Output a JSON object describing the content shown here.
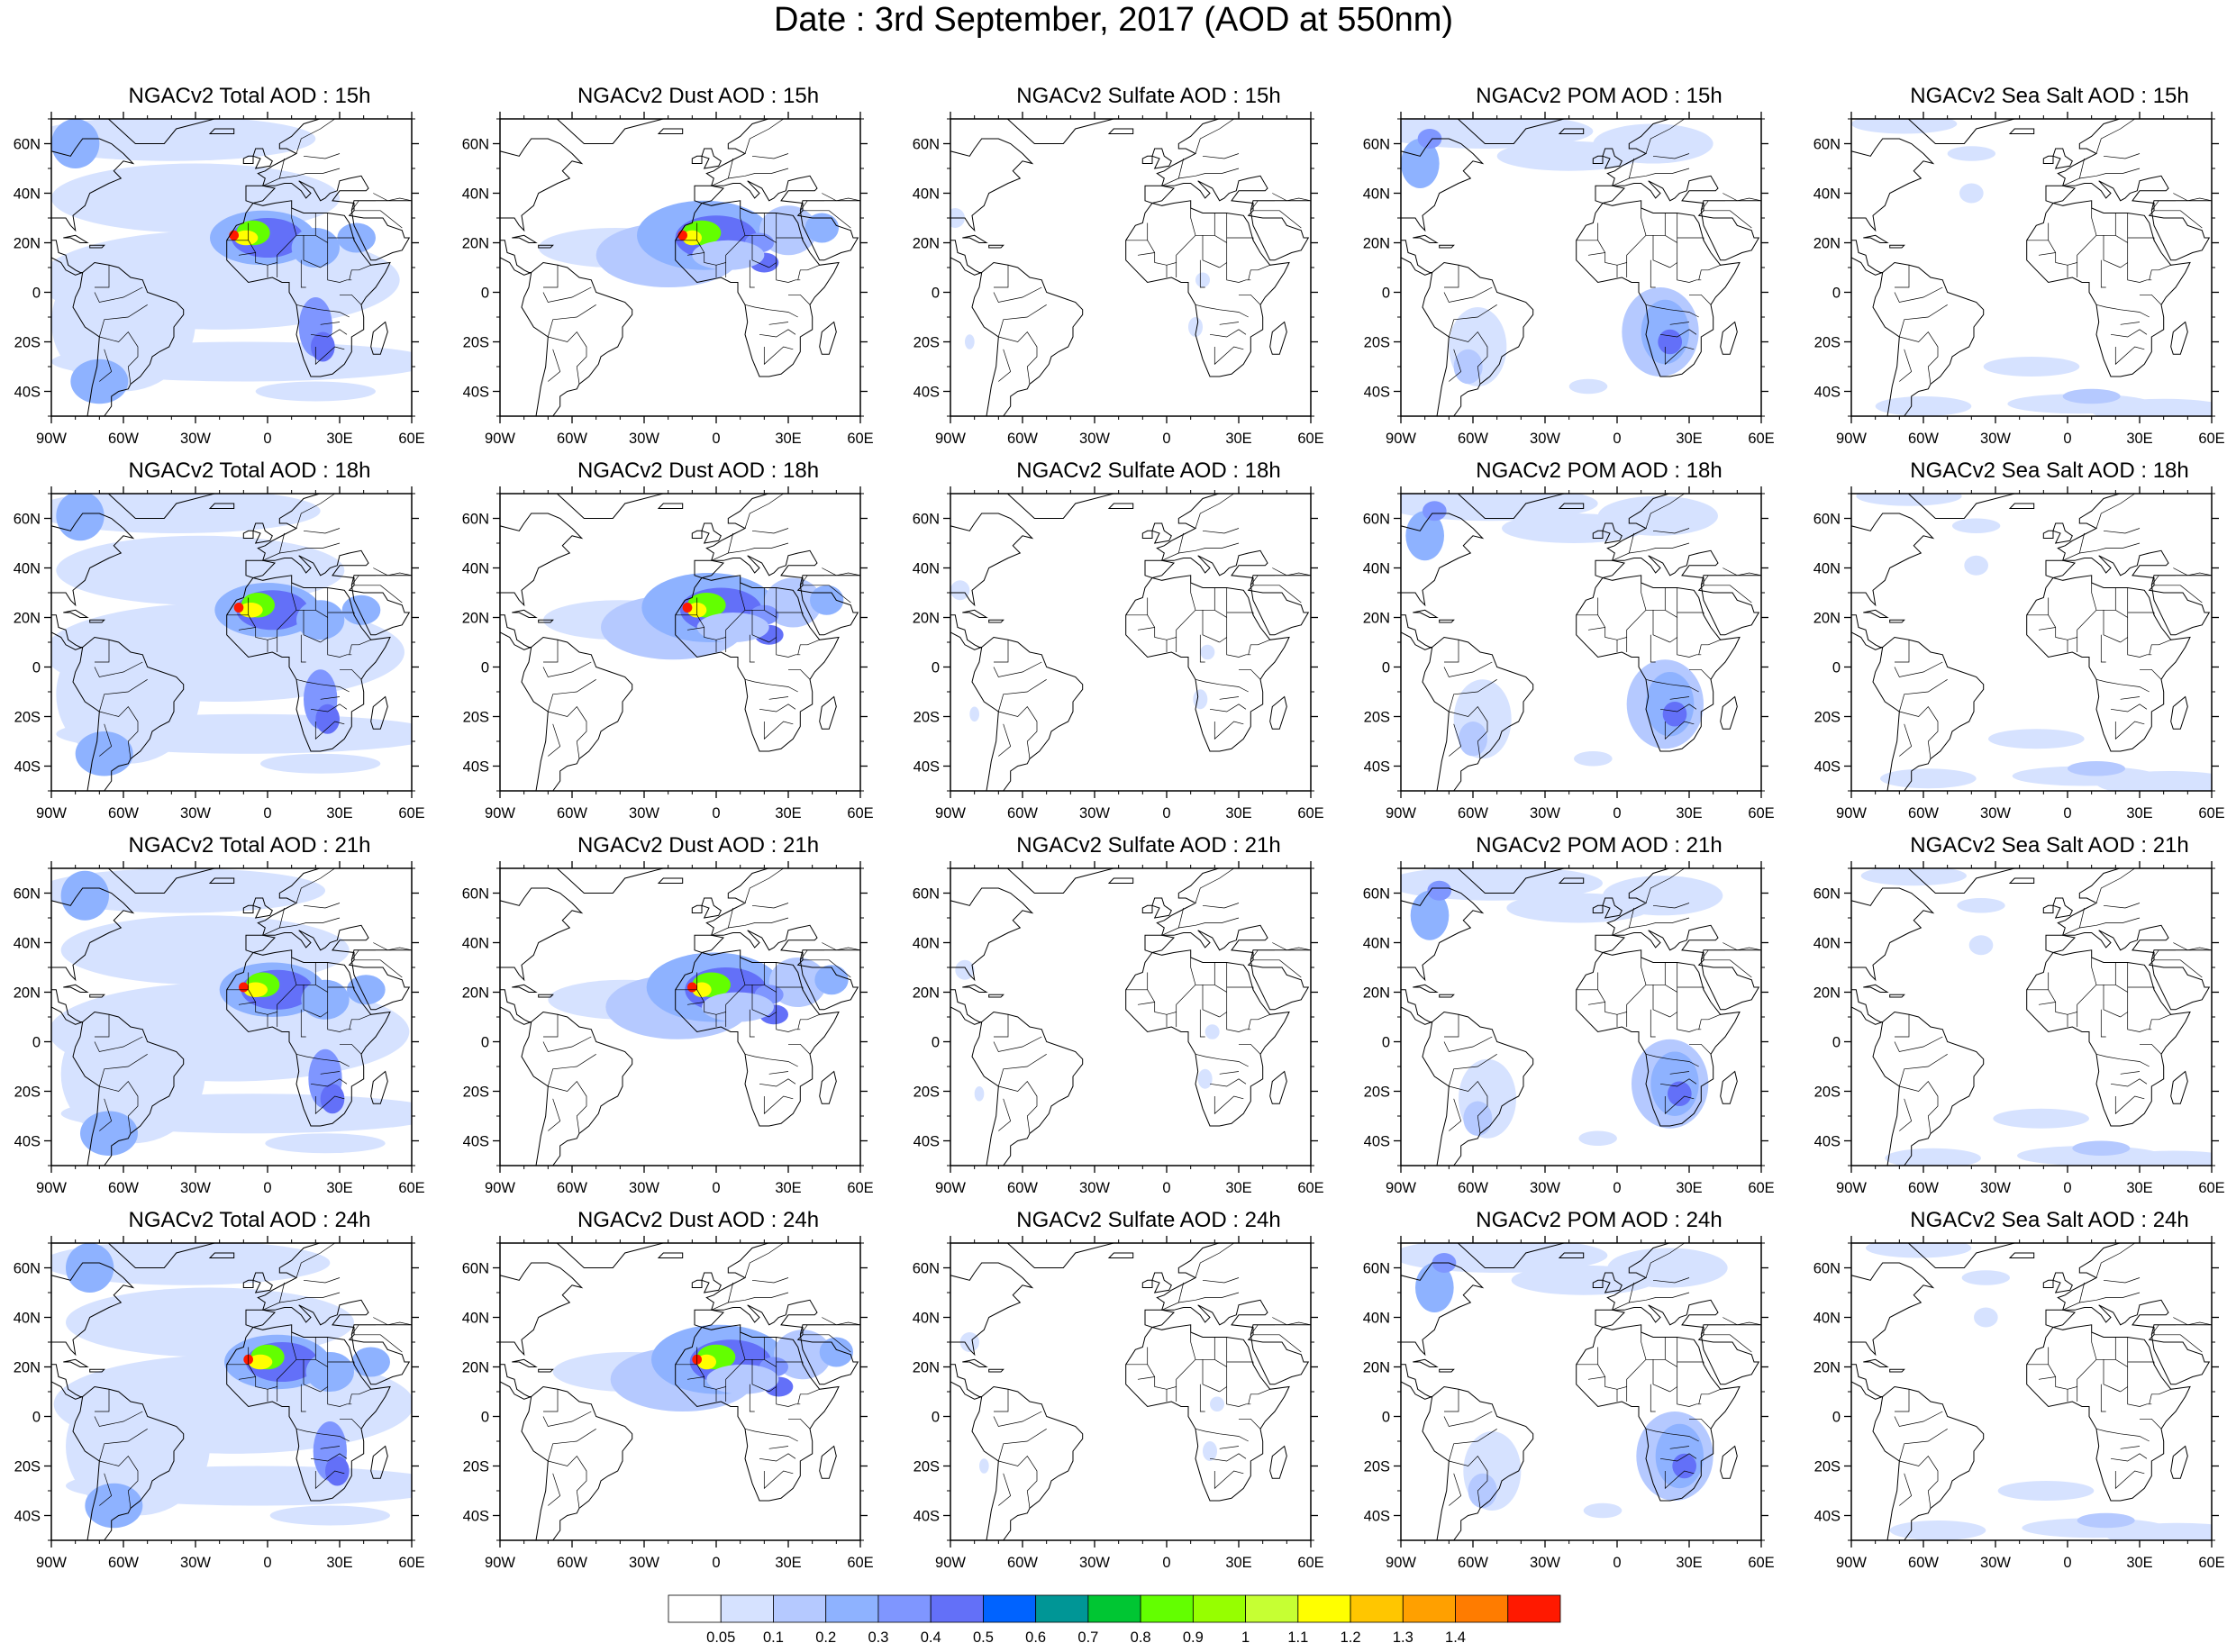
{
  "title": "Date : 3rd September, 2017 (AOD at 550nm)",
  "lon_tick_labels": [
    "90W",
    "60W",
    "30W",
    "0",
    "30E",
    "60E"
  ],
  "lat_tick_labels": [
    "60N",
    "40N",
    "20N",
    "0",
    "20S",
    "40S"
  ],
  "map_extent": {
    "lon": [
      -90,
      60
    ],
    "lat": [
      -50,
      70
    ]
  },
  "panels": [
    [
      {
        "title": "NGACv2 Total AOD : 15h",
        "species": "total"
      },
      {
        "title": "NGACv2 Dust AOD : 15h",
        "species": "dust"
      },
      {
        "title": "NGACv2 Sulfate AOD : 15h",
        "species": "sulfate"
      },
      {
        "title": "NGACv2 POM AOD : 15h",
        "species": "pom"
      },
      {
        "title": "NGACv2 Sea Salt AOD : 15h",
        "species": "seasalt"
      }
    ],
    [
      {
        "title": "NGACv2 Total AOD : 18h",
        "species": "total"
      },
      {
        "title": "NGACv2 Dust AOD : 18h",
        "species": "dust"
      },
      {
        "title": "NGACv2 Sulfate AOD : 18h",
        "species": "sulfate"
      },
      {
        "title": "NGACv2 POM AOD : 18h",
        "species": "pom"
      },
      {
        "title": "NGACv2 Sea Salt AOD : 18h",
        "species": "seasalt"
      }
    ],
    [
      {
        "title": "NGACv2 Total AOD : 21h",
        "species": "total"
      },
      {
        "title": "NGACv2 Dust AOD : 21h",
        "species": "dust"
      },
      {
        "title": "NGACv2 Sulfate AOD : 21h",
        "species": "sulfate"
      },
      {
        "title": "NGACv2 POM AOD : 21h",
        "species": "pom"
      },
      {
        "title": "NGACv2 Sea Salt AOD : 21h",
        "species": "seasalt"
      }
    ],
    [
      {
        "title": "NGACv2 Total AOD : 24h",
        "species": "total"
      },
      {
        "title": "NGACv2 Dust AOD : 24h",
        "species": "dust"
      },
      {
        "title": "NGACv2 Sulfate AOD : 24h",
        "species": "sulfate"
      },
      {
        "title": "NGACv2 POM AOD : 24h",
        "species": "pom"
      },
      {
        "title": "NGACv2 Sea Salt  AOD : 24h",
        "species": "seasalt"
      }
    ]
  ],
  "colorbar": {
    "labels": [
      "0.05",
      "0.1",
      "0.2",
      "0.3",
      "0.4",
      "0.5",
      "0.6",
      "0.7",
      "0.8",
      "0.9",
      "1",
      "1.1",
      "1.2",
      "1.3",
      "1.4"
    ],
    "colors": [
      "#ffffff",
      "#d6e2ff",
      "#b5c9ff",
      "#8eb2ff",
      "#7f96ff",
      "#6370f8",
      "#0063ff",
      "#009696",
      "#00c633",
      "#63ff00",
      "#96ff00",
      "#c6ff33",
      "#ffff00",
      "#ffc600",
      "#ffa000",
      "#ff7c00",
      "#ff1900"
    ]
  }
}
